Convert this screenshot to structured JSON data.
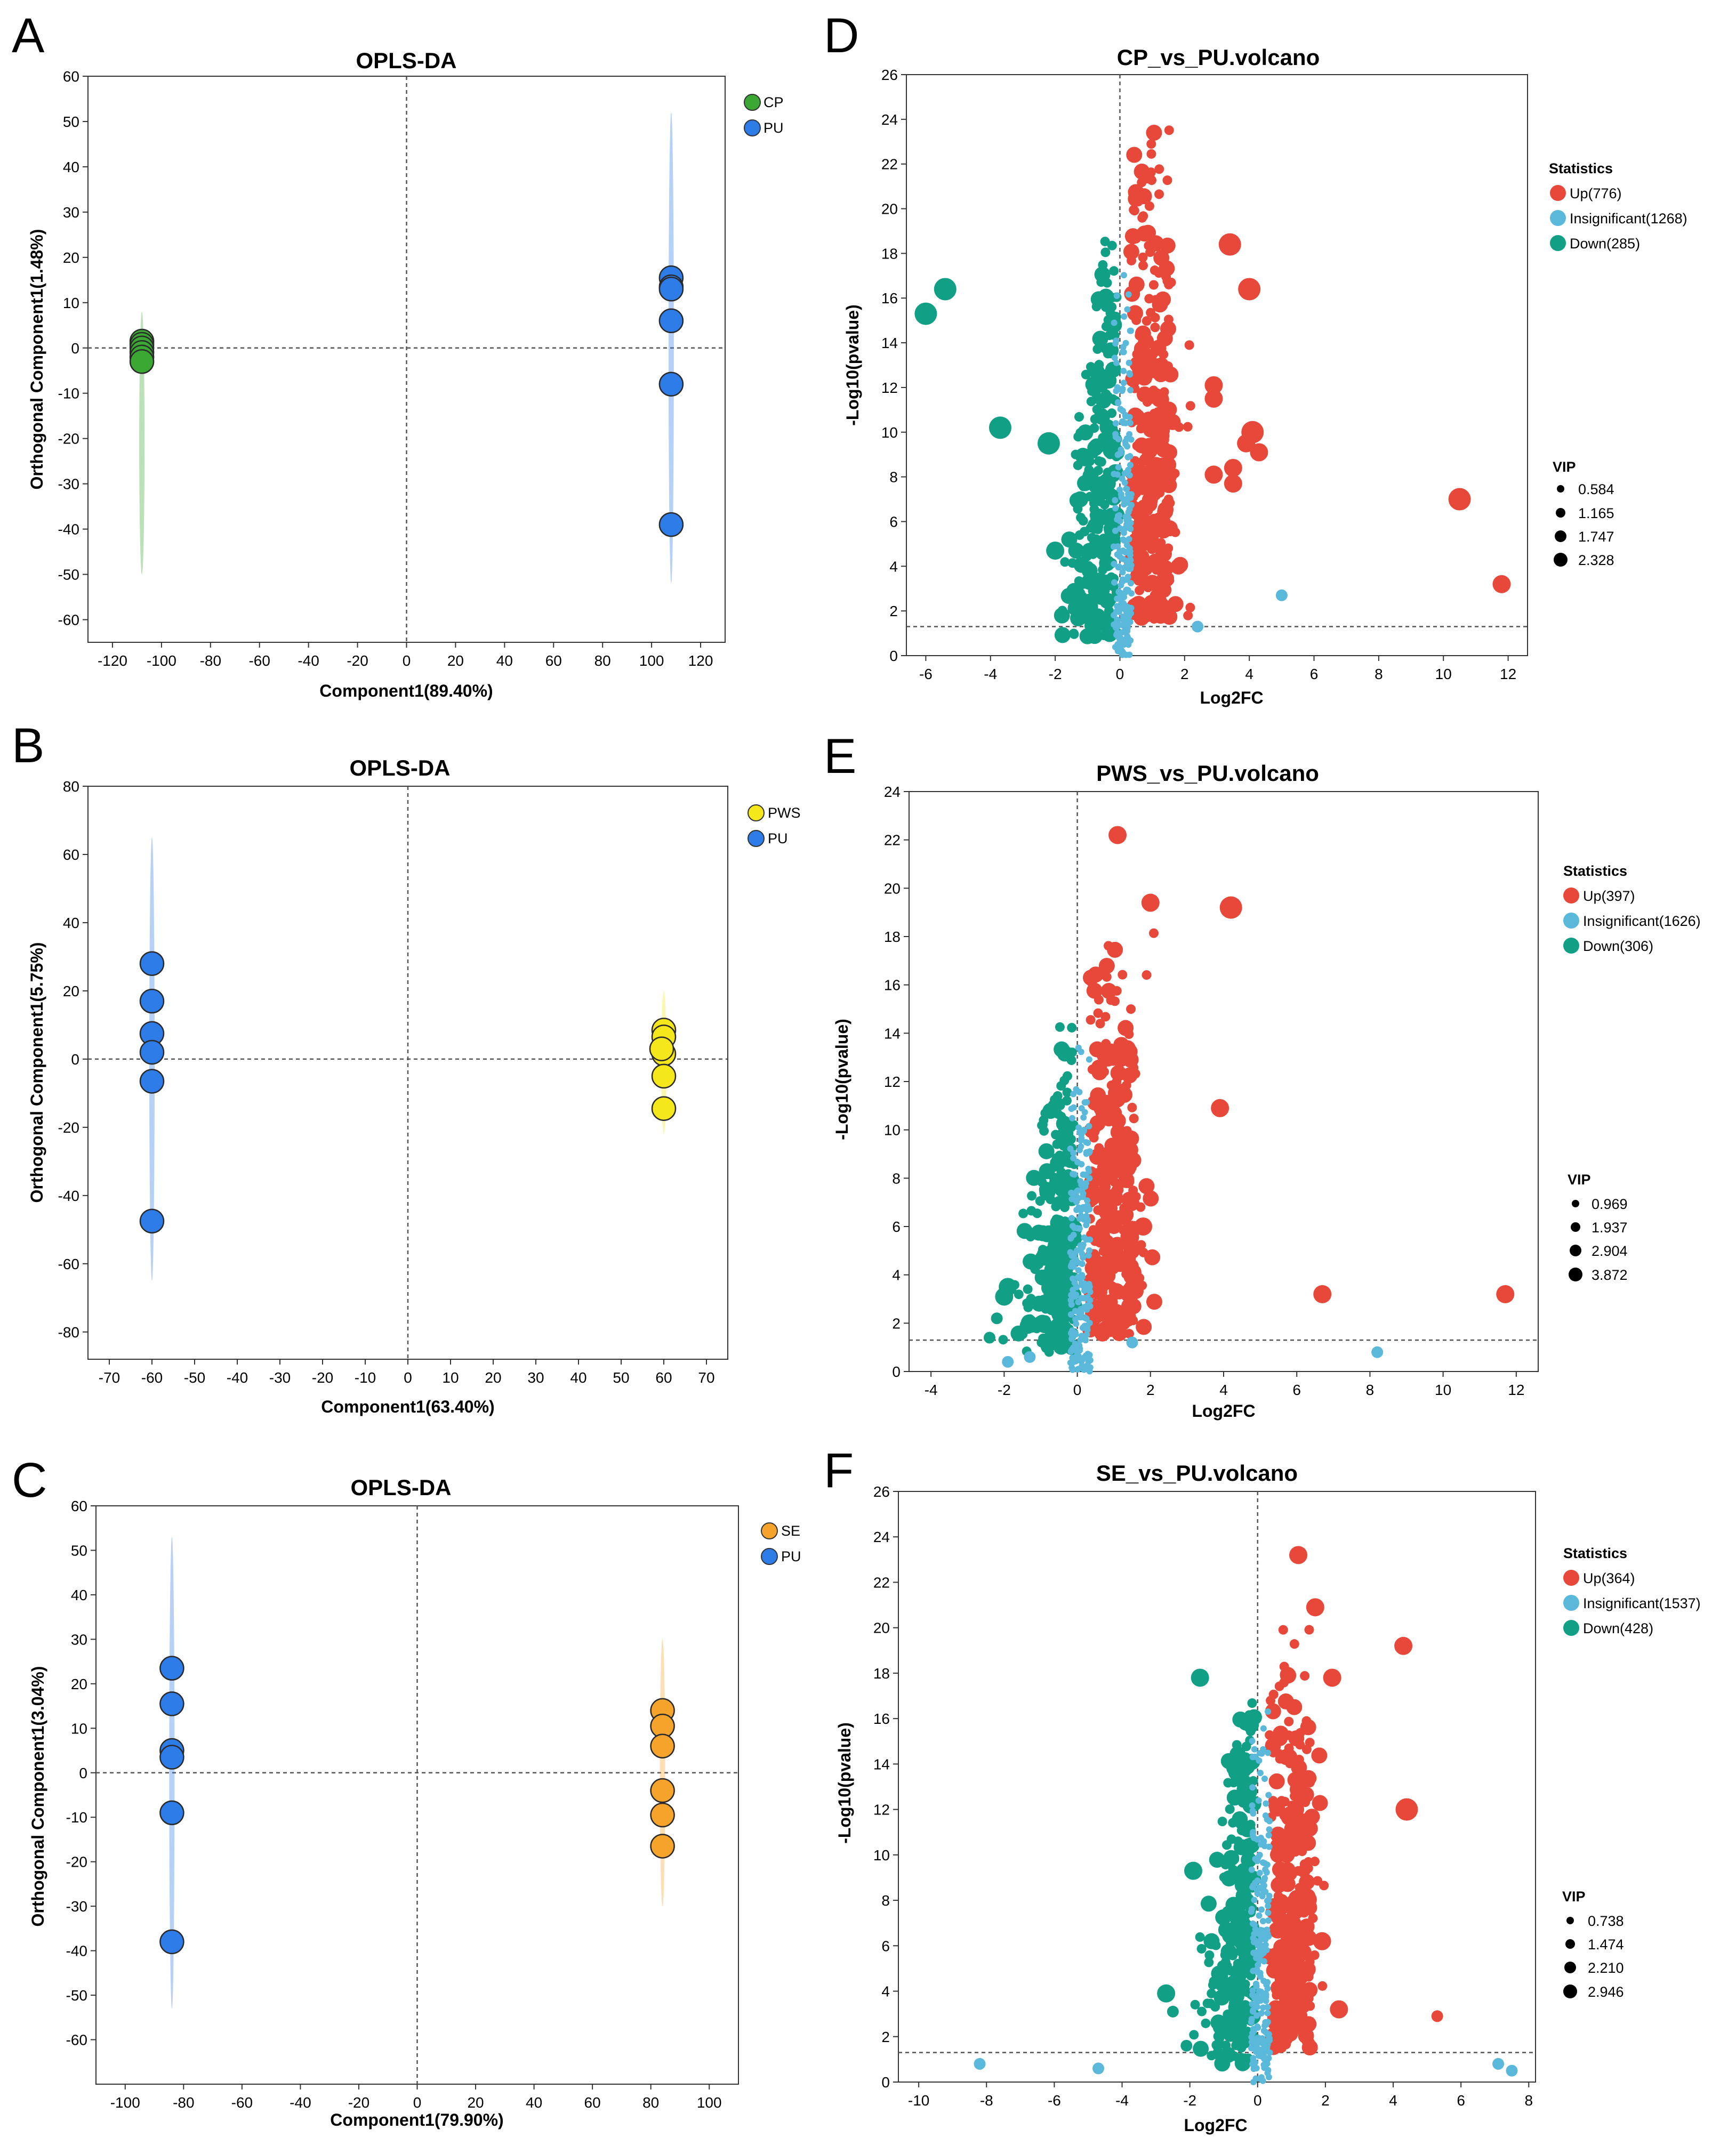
{
  "chart_data": [
    {
      "panel": "A",
      "type": "scatter",
      "title": "OPLS-DA",
      "xlabel": "Component1(89.40%)",
      "ylabel": "Orthogonal Component1(1.48%)",
      "xlim": [
        -130,
        130
      ],
      "ylim": [
        -65,
        60
      ],
      "xticks": [
        -120,
        -100,
        -80,
        -60,
        -40,
        -20,
        0,
        20,
        40,
        60,
        80,
        100,
        120
      ],
      "yticks": [
        60,
        50,
        40,
        30,
        20,
        10,
        0,
        -10,
        -20,
        -30,
        -40,
        -50,
        -60
      ],
      "legend_position": "top-right",
      "series": [
        {
          "name": "CP",
          "color": "#3aa832",
          "x": [
            -108,
            -108,
            -108,
            -108,
            -108,
            -108
          ],
          "y": [
            1.5,
            0.8,
            0,
            -1,
            -2,
            -3
          ],
          "ellipse": [
            -50,
            8
          ]
        },
        {
          "name": "PU",
          "color": "#2e7ce8",
          "x": [
            108,
            108,
            108,
            108,
            108,
            108
          ],
          "y": [
            15.5,
            13.5,
            13,
            6,
            -8,
            -39
          ],
          "ellipse": [
            -52,
            52
          ]
        }
      ]
    },
    {
      "panel": "B",
      "type": "scatter",
      "title": "OPLS-DA",
      "xlabel": "Component1(63.40%)",
      "ylabel": "Orthogonal Component1(5.75%)",
      "xlim": [
        -75,
        75
      ],
      "ylim": [
        -88,
        80
      ],
      "xticks": [
        -70,
        -60,
        -50,
        -40,
        -30,
        -20,
        -10,
        0,
        10,
        20,
        30,
        40,
        50,
        60,
        70
      ],
      "yticks": [
        80,
        60,
        40,
        20,
        0,
        -20,
        -40,
        -60,
        -80
      ],
      "legend_position": "top-right",
      "series": [
        {
          "name": "PWS",
          "color": "#f5e71a",
          "x": [
            60,
            60,
            60,
            59.5,
            60,
            60
          ],
          "y": [
            8.5,
            6.5,
            1.5,
            3,
            -5,
            -14.5
          ],
          "ellipse": [
            -22,
            20
          ]
        },
        {
          "name": "PU",
          "color": "#2e7ce8",
          "x": [
            -60,
            -60,
            -60,
            -60,
            -60,
            -60
          ],
          "y": [
            28,
            17,
            7.5,
            2,
            -6.5,
            -47.5
          ],
          "ellipse": [
            -65,
            65
          ]
        }
      ]
    },
    {
      "panel": "C",
      "type": "scatter",
      "title": "OPLS-DA",
      "xlabel": "Component1(79.90%)",
      "ylabel": "Orthogonal Component1(3.04%)",
      "xlim": [
        -110,
        110
      ],
      "ylim": [
        -70,
        60
      ],
      "xticks": [
        -100,
        -80,
        -60,
        -40,
        -20,
        0,
        20,
        40,
        60,
        80,
        100
      ],
      "yticks": [
        60,
        50,
        40,
        30,
        20,
        10,
        0,
        -10,
        -20,
        -30,
        -40,
        -50,
        -60
      ],
      "legend_position": "top-right",
      "series": [
        {
          "name": "SE",
          "color": "#f5a32b",
          "x": [
            84,
            84,
            84,
            84,
            84,
            84
          ],
          "y": [
            14,
            10.5,
            6,
            -4,
            -9.5,
            -16.5
          ],
          "ellipse": [
            -30,
            30
          ]
        },
        {
          "name": "PU",
          "color": "#2e7ce8",
          "x": [
            -84,
            -84,
            -84,
            -84,
            -84,
            -84
          ],
          "y": [
            23.5,
            15.5,
            5,
            3.5,
            -9,
            -38
          ],
          "ellipse": [
            -53,
            53
          ]
        }
      ]
    },
    {
      "panel": "D",
      "type": "scatter",
      "title": "CP_vs_PU.volcano",
      "xlabel": "Log2FC",
      "ylabel": "-Log10(pvalue)",
      "xlim": [
        -6.6,
        12.6
      ],
      "ylim": [
        0,
        26
      ],
      "xticks": [
        -6,
        -4,
        -2,
        0,
        2,
        4,
        6,
        8,
        10,
        12
      ],
      "yticks": [
        0,
        2,
        4,
        6,
        8,
        10,
        12,
        14,
        16,
        18,
        20,
        22,
        24,
        26
      ],
      "threshold_y": 1.3,
      "legend_title": "Statistics",
      "legend": [
        "Up(776)",
        "Insignificant(1268)",
        "Down(285)"
      ],
      "vip_title": "VIP",
      "vip": [
        "0.584",
        "1.165",
        "1.747",
        "2.328"
      ],
      "cloud": {
        "up_max": 24.5,
        "down_max": 19.5
      },
      "outliers": [
        {
          "x": -6.0,
          "y": 15.3,
          "c": "down",
          "s": 3
        },
        {
          "x": -5.4,
          "y": 16.4,
          "c": "down",
          "s": 3
        },
        {
          "x": -3.7,
          "y": 10.2,
          "c": "down",
          "s": 3
        },
        {
          "x": -2.2,
          "y": 9.5,
          "c": "down",
          "s": 3
        },
        {
          "x": -2.0,
          "y": 4.7,
          "c": "down",
          "s": 2
        },
        {
          "x": 3.4,
          "y": 18.4,
          "c": "up",
          "s": 3
        },
        {
          "x": 4.0,
          "y": 16.4,
          "c": "up",
          "s": 3
        },
        {
          "x": 2.9,
          "y": 12.1,
          "c": "up",
          "s": 2
        },
        {
          "x": 2.9,
          "y": 11.5,
          "c": "up",
          "s": 2
        },
        {
          "x": 4.1,
          "y": 10.0,
          "c": "up",
          "s": 3
        },
        {
          "x": 3.9,
          "y": 9.5,
          "c": "up",
          "s": 2
        },
        {
          "x": 4.3,
          "y": 9.1,
          "c": "up",
          "s": 2
        },
        {
          "x": 3.5,
          "y": 8.4,
          "c": "up",
          "s": 2
        },
        {
          "x": 2.9,
          "y": 8.1,
          "c": "up",
          "s": 2
        },
        {
          "x": 3.5,
          "y": 7.7,
          "c": "up",
          "s": 2
        },
        {
          "x": 10.5,
          "y": 7.0,
          "c": "up",
          "s": 3
        },
        {
          "x": 11.8,
          "y": 3.2,
          "c": "up",
          "s": 2
        },
        {
          "x": 5.0,
          "y": 2.7,
          "c": "insig",
          "s": 1
        },
        {
          "x": 2.4,
          "y": 1.3,
          "c": "insig",
          "s": 1
        }
      ]
    },
    {
      "panel": "E",
      "type": "scatter",
      "title": "PWS_vs_PU.volcano",
      "xlabel": "Log2FC",
      "ylabel": "-Log10(pvalue)",
      "xlim": [
        -4.6,
        12.6
      ],
      "ylim": [
        0,
        24
      ],
      "xticks": [
        -4,
        -2,
        0,
        2,
        4,
        6,
        8,
        10,
        12
      ],
      "yticks": [
        0,
        2,
        4,
        6,
        8,
        10,
        12,
        14,
        16,
        18,
        20,
        22,
        24
      ],
      "threshold_y": 1.3,
      "legend_title": "Statistics",
      "legend": [
        "Up(397)",
        "Insignificant(1626)",
        "Down(306)"
      ],
      "vip_title": "VIP",
      "vip": [
        "0.969",
        "1.937",
        "2.904",
        "3.872"
      ],
      "cloud": {
        "up_max": 19.5,
        "down_max": 15.0
      },
      "outliers": [
        {
          "x": 1.1,
          "y": 22.2,
          "c": "up",
          "s": 2
        },
        {
          "x": 2.0,
          "y": 19.4,
          "c": "up",
          "s": 2
        },
        {
          "x": 4.2,
          "y": 19.2,
          "c": "up",
          "s": 3
        },
        {
          "x": 3.9,
          "y": 10.9,
          "c": "up",
          "s": 2
        },
        {
          "x": 1.8,
          "y": 6.0,
          "c": "up",
          "s": 2
        },
        {
          "x": 6.7,
          "y": 3.2,
          "c": "up",
          "s": 2
        },
        {
          "x": 11.7,
          "y": 3.2,
          "c": "up",
          "s": 2
        },
        {
          "x": -1.9,
          "y": 3.5,
          "c": "down",
          "s": 2
        },
        {
          "x": -2.0,
          "y": 3.1,
          "c": "down",
          "s": 2
        },
        {
          "x": -2.2,
          "y": 2.2,
          "c": "down",
          "s": 1
        },
        {
          "x": -2.4,
          "y": 1.4,
          "c": "down",
          "s": 1
        },
        {
          "x": 8.2,
          "y": 0.8,
          "c": "insig",
          "s": 1
        },
        {
          "x": 1.5,
          "y": 1.2,
          "c": "insig",
          "s": 1
        },
        {
          "x": -1.3,
          "y": 0.6,
          "c": "insig",
          "s": 1
        },
        {
          "x": -1.9,
          "y": 0.4,
          "c": "insig",
          "s": 1
        }
      ]
    },
    {
      "panel": "F",
      "type": "scatter",
      "title": "SE_vs_PU.volcano",
      "xlabel": "Log2FC",
      "ylabel": "-Log10(pvalue)",
      "xlim": [
        -10.6,
        8.2
      ],
      "ylim": [
        0,
        26
      ],
      "xticks": [
        -10,
        -8,
        -6,
        -4,
        -2,
        0,
        2,
        4,
        6,
        8
      ],
      "yticks": [
        0,
        2,
        4,
        6,
        8,
        10,
        12,
        14,
        16,
        18,
        20,
        22,
        24,
        26
      ],
      "threshold_y": 1.3,
      "legend_title": "Statistics",
      "legend": [
        "Up(364)",
        "Insignificant(1537)",
        "Down(428)"
      ],
      "vip_title": "VIP",
      "vip": [
        "0.738",
        "1.474",
        "2.210",
        "2.946"
      ],
      "cloud": {
        "up_max": 20.5,
        "down_max": 18.0
      },
      "outliers": [
        {
          "x": 1.2,
          "y": 23.2,
          "c": "up",
          "s": 2
        },
        {
          "x": 4.3,
          "y": 19.2,
          "c": "up",
          "s": 2
        },
        {
          "x": 1.7,
          "y": 20.9,
          "c": "up",
          "s": 2
        },
        {
          "x": 2.2,
          "y": 17.8,
          "c": "up",
          "s": 2
        },
        {
          "x": 4.4,
          "y": 12.0,
          "c": "up",
          "s": 3
        },
        {
          "x": 1.9,
          "y": 6.2,
          "c": "up",
          "s": 2
        },
        {
          "x": 2.4,
          "y": 3.2,
          "c": "up",
          "s": 2
        },
        {
          "x": 5.3,
          "y": 2.9,
          "c": "up",
          "s": 1
        },
        {
          "x": -1.7,
          "y": 17.8,
          "c": "down",
          "s": 2
        },
        {
          "x": -1.9,
          "y": 9.3,
          "c": "down",
          "s": 2
        },
        {
          "x": -2.7,
          "y": 3.9,
          "c": "down",
          "s": 2
        },
        {
          "x": -2.5,
          "y": 3.1,
          "c": "down",
          "s": 1
        },
        {
          "x": -2.1,
          "y": 1.6,
          "c": "down",
          "s": 1
        },
        {
          "x": -8.2,
          "y": 0.8,
          "c": "insig",
          "s": 1
        },
        {
          "x": -4.7,
          "y": 0.6,
          "c": "insig",
          "s": 1
        },
        {
          "x": 7.1,
          "y": 0.8,
          "c": "insig",
          "s": 1
        },
        {
          "x": 7.5,
          "y": 0.5,
          "c": "insig",
          "s": 1
        }
      ]
    }
  ],
  "colors": {
    "up": "#e8483a",
    "insig": "#5ab8db",
    "down": "#11a086"
  }
}
